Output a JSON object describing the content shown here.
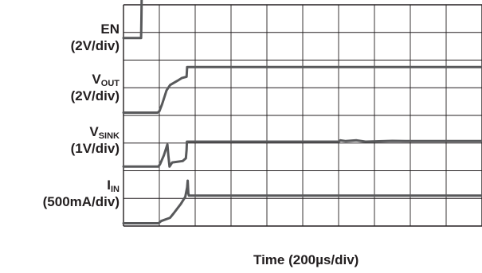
{
  "chart_data": {
    "type": "line",
    "title": "",
    "xlabel": "Time (200µs/div)",
    "ylabel": "",
    "grid": true,
    "divisions": {
      "x": 10,
      "y": 8
    },
    "xlim": [
      0,
      2000
    ],
    "x_units": "µs",
    "colors": {
      "trace": "#58595b",
      "grid": "#231f20",
      "text": "#231f20"
    },
    "series": [
      {
        "name": "EN",
        "sub": "",
        "scale": "(2V/div)",
        "y_units": "V",
        "y_per_div": 2,
        "baseline_div": 6.8,
        "points": [
          [
            0,
            0
          ],
          [
            98,
            0
          ],
          [
            100,
            1.4
          ],
          [
            102,
            3.3
          ],
          [
            110,
            3.3
          ],
          [
            165,
            3.25
          ],
          [
            2000,
            3.25
          ]
        ]
      },
      {
        "name": "V",
        "sub": "OUT",
        "scale": "(2V/div)",
        "y_units": "V",
        "y_per_div": 2,
        "baseline_div": 4.1,
        "points": [
          [
            0,
            0
          ],
          [
            190,
            0
          ],
          [
            200,
            0.1
          ],
          [
            215,
            0.6
          ],
          [
            240,
            1.6
          ],
          [
            260,
            2.0
          ],
          [
            300,
            2.3
          ],
          [
            325,
            2.5
          ],
          [
            352,
            2.6
          ],
          [
            355,
            3.3
          ],
          [
            2000,
            3.3
          ]
        ]
      },
      {
        "name": "V",
        "sub": "SINK",
        "scale": "(1V/div)",
        "y_units": "V",
        "y_per_div": 1,
        "baseline_div": 2.15,
        "points": [
          [
            0,
            0
          ],
          [
            195,
            0
          ],
          [
            205,
            0.1
          ],
          [
            225,
            0.4
          ],
          [
            245,
            0.8
          ],
          [
            250,
            0.4
          ],
          [
            257,
            0
          ],
          [
            272,
            0.15
          ],
          [
            330,
            0.2
          ],
          [
            348,
            0.3
          ],
          [
            352,
            0.6
          ],
          [
            354,
            0.9
          ],
          [
            400,
            0.9
          ],
          [
            1200,
            0.9
          ],
          [
            1210,
            0.95
          ],
          [
            1240,
            0.92
          ],
          [
            1300,
            0.95
          ],
          [
            1350,
            0.9
          ],
          [
            1500,
            0.93
          ],
          [
            1600,
            0.92
          ],
          [
            2000,
            0.92
          ]
        ]
      },
      {
        "name": "I",
        "sub": "IN",
        "scale": "(500mA/div)",
        "y_units": "mA",
        "y_per_div": 500,
        "baseline_div": 0.1,
        "points": [
          [
            0,
            0
          ],
          [
            195,
            0
          ],
          [
            210,
            40
          ],
          [
            260,
            100
          ],
          [
            280,
            180
          ],
          [
            320,
            350
          ],
          [
            345,
            480
          ],
          [
            355,
            650
          ],
          [
            358,
            770
          ],
          [
            362,
            540
          ],
          [
            365,
            500
          ],
          [
            2000,
            500
          ]
        ]
      }
    ]
  }
}
